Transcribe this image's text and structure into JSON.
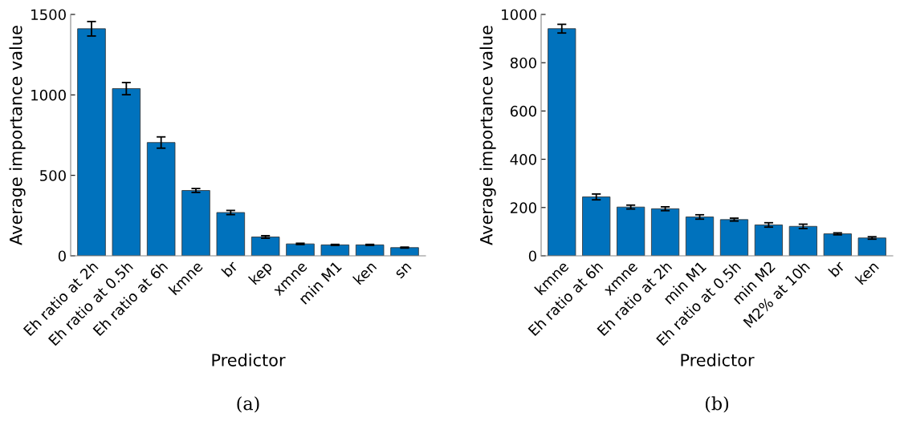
{
  "chart_data": [
    {
      "type": "bar",
      "xlabel": "Predictor",
      "ylabel": "Average importance value",
      "annotations": [
        "(a)"
      ],
      "categories": [
        "Eh ratio at 2h",
        "Eh ratio at 0.5h",
        "Eh ratio at 6h",
        "kmne",
        "br",
        "kep",
        "xmne",
        "min M1",
        "ken",
        "sn"
      ],
      "values": [
        1411,
        1039,
        704,
        406,
        269,
        117,
        74,
        68,
        68,
        51
      ],
      "errors": [
        45,
        38,
        35,
        12,
        13,
        8,
        4,
        3,
        3,
        3
      ],
      "color": "#0072bd",
      "ylim": [
        0,
        1500
      ],
      "yticks": [
        0,
        500,
        1000,
        1500
      ]
    },
    {
      "type": "bar",
      "xlabel": "Predictor",
      "ylabel": "Average importance value",
      "annotations": [
        "(b)"
      ],
      "categories": [
        "kmne",
        "Eh ratio at 6h",
        "xmne",
        "Eh ratio at 2h",
        "min M1",
        "Eh ratio at 0.5h",
        "min M2",
        "M2% at 10h",
        "br",
        "ken"
      ],
      "values": [
        941,
        244,
        202,
        195,
        161,
        150,
        128,
        122,
        91,
        74
      ],
      "errors": [
        18,
        12,
        8,
        8,
        9,
        6,
        9,
        9,
        4,
        5
      ],
      "color": "#0072bd",
      "ylim": [
        0,
        1000
      ],
      "yticks": [
        0,
        200,
        400,
        600,
        800,
        1000
      ]
    }
  ]
}
